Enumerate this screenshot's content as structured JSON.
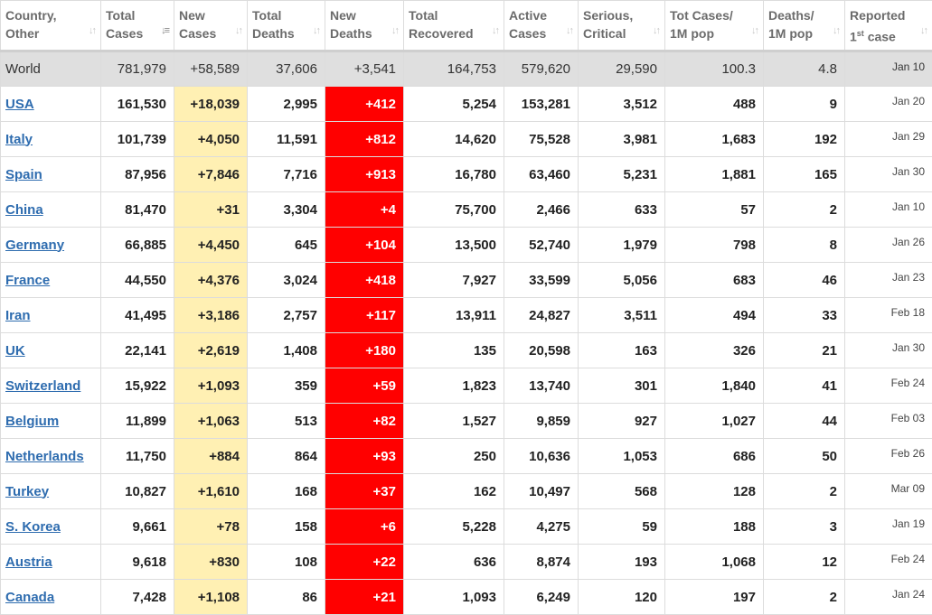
{
  "table": {
    "headers": {
      "country": {
        "line1": "Country,",
        "line2": "Other"
      },
      "total_cases": {
        "line1": "Total",
        "line2": "Cases"
      },
      "new_cases": {
        "line1": "New",
        "line2": "Cases"
      },
      "total_deaths": {
        "line1": "Total",
        "line2": "Deaths"
      },
      "new_deaths": {
        "line1": "New",
        "line2": "Deaths"
      },
      "total_recovered": {
        "line1": "Total",
        "line2": "Recovered"
      },
      "active_cases": {
        "line1": "Active",
        "line2": "Cases"
      },
      "serious_critical": {
        "line1": "Serious,",
        "line2": "Critical"
      },
      "tot_cases_per_1m": {
        "line1": "Tot Cases/",
        "line2": "1M pop"
      },
      "deaths_per_1m": {
        "line1": "Deaths/",
        "line2": "1M pop"
      },
      "reported_first": {
        "line1": "Reported",
        "line2_pre": "1",
        "line2_sup": "st",
        "line2_post": " case"
      }
    },
    "sort_column": "total_cases",
    "world": {
      "country": "World",
      "total_cases": "781,979",
      "new_cases": "+58,589",
      "total_deaths": "37,606",
      "new_deaths": "+3,541",
      "total_recovered": "164,753",
      "active_cases": "579,620",
      "serious_critical": "29,590",
      "tot_cases_per_1m": "100.3",
      "deaths_per_1m": "4.8",
      "reported_first": "Jan 10"
    },
    "rows": [
      {
        "country": "USA",
        "total_cases": "161,530",
        "new_cases": "+18,039",
        "total_deaths": "2,995",
        "new_deaths": "+412",
        "total_recovered": "5,254",
        "active_cases": "153,281",
        "serious_critical": "3,512",
        "tot_cases_per_1m": "488",
        "deaths_per_1m": "9",
        "reported_first": "Jan 20"
      },
      {
        "country": "Italy",
        "total_cases": "101,739",
        "new_cases": "+4,050",
        "total_deaths": "11,591",
        "new_deaths": "+812",
        "total_recovered": "14,620",
        "active_cases": "75,528",
        "serious_critical": "3,981",
        "tot_cases_per_1m": "1,683",
        "deaths_per_1m": "192",
        "reported_first": "Jan 29"
      },
      {
        "country": "Spain",
        "total_cases": "87,956",
        "new_cases": "+7,846",
        "total_deaths": "7,716",
        "new_deaths": "+913",
        "total_recovered": "16,780",
        "active_cases": "63,460",
        "serious_critical": "5,231",
        "tot_cases_per_1m": "1,881",
        "deaths_per_1m": "165",
        "reported_first": "Jan 30"
      },
      {
        "country": "China",
        "total_cases": "81,470",
        "new_cases": "+31",
        "total_deaths": "3,304",
        "new_deaths": "+4",
        "total_recovered": "75,700",
        "active_cases": "2,466",
        "serious_critical": "633",
        "tot_cases_per_1m": "57",
        "deaths_per_1m": "2",
        "reported_first": "Jan 10"
      },
      {
        "country": "Germany",
        "total_cases": "66,885",
        "new_cases": "+4,450",
        "total_deaths": "645",
        "new_deaths": "+104",
        "total_recovered": "13,500",
        "active_cases": "52,740",
        "serious_critical": "1,979",
        "tot_cases_per_1m": "798",
        "deaths_per_1m": "8",
        "reported_first": "Jan 26"
      },
      {
        "country": "France",
        "total_cases": "44,550",
        "new_cases": "+4,376",
        "total_deaths": "3,024",
        "new_deaths": "+418",
        "total_recovered": "7,927",
        "active_cases": "33,599",
        "serious_critical": "5,056",
        "tot_cases_per_1m": "683",
        "deaths_per_1m": "46",
        "reported_first": "Jan 23"
      },
      {
        "country": "Iran",
        "total_cases": "41,495",
        "new_cases": "+3,186",
        "total_deaths": "2,757",
        "new_deaths": "+117",
        "total_recovered": "13,911",
        "active_cases": "24,827",
        "serious_critical": "3,511",
        "tot_cases_per_1m": "494",
        "deaths_per_1m": "33",
        "reported_first": "Feb 18"
      },
      {
        "country": "UK",
        "total_cases": "22,141",
        "new_cases": "+2,619",
        "total_deaths": "1,408",
        "new_deaths": "+180",
        "total_recovered": "135",
        "active_cases": "20,598",
        "serious_critical": "163",
        "tot_cases_per_1m": "326",
        "deaths_per_1m": "21",
        "reported_first": "Jan 30"
      },
      {
        "country": "Switzerland",
        "total_cases": "15,922",
        "new_cases": "+1,093",
        "total_deaths": "359",
        "new_deaths": "+59",
        "total_recovered": "1,823",
        "active_cases": "13,740",
        "serious_critical": "301",
        "tot_cases_per_1m": "1,840",
        "deaths_per_1m": "41",
        "reported_first": "Feb 24"
      },
      {
        "country": "Belgium",
        "total_cases": "11,899",
        "new_cases": "+1,063",
        "total_deaths": "513",
        "new_deaths": "+82",
        "total_recovered": "1,527",
        "active_cases": "9,859",
        "serious_critical": "927",
        "tot_cases_per_1m": "1,027",
        "deaths_per_1m": "44",
        "reported_first": "Feb 03"
      },
      {
        "country": "Netherlands",
        "total_cases": "11,750",
        "new_cases": "+884",
        "total_deaths": "864",
        "new_deaths": "+93",
        "total_recovered": "250",
        "active_cases": "10,636",
        "serious_critical": "1,053",
        "tot_cases_per_1m": "686",
        "deaths_per_1m": "50",
        "reported_first": "Feb 26"
      },
      {
        "country": "Turkey",
        "total_cases": "10,827",
        "new_cases": "+1,610",
        "total_deaths": "168",
        "new_deaths": "+37",
        "total_recovered": "162",
        "active_cases": "10,497",
        "serious_critical": "568",
        "tot_cases_per_1m": "128",
        "deaths_per_1m": "2",
        "reported_first": "Mar 09"
      },
      {
        "country": "S. Korea",
        "total_cases": "9,661",
        "new_cases": "+78",
        "total_deaths": "158",
        "new_deaths": "+6",
        "total_recovered": "5,228",
        "active_cases": "4,275",
        "serious_critical": "59",
        "tot_cases_per_1m": "188",
        "deaths_per_1m": "3",
        "reported_first": "Jan 19"
      },
      {
        "country": "Austria",
        "total_cases": "9,618",
        "new_cases": "+830",
        "total_deaths": "108",
        "new_deaths": "+22",
        "total_recovered": "636",
        "active_cases": "8,874",
        "serious_critical": "193",
        "tot_cases_per_1m": "1,068",
        "deaths_per_1m": "12",
        "reported_first": "Feb 24"
      },
      {
        "country": "Canada",
        "total_cases": "7,428",
        "new_cases": "+1,108",
        "total_deaths": "86",
        "new_deaths": "+21",
        "total_recovered": "1,093",
        "active_cases": "6,249",
        "serious_critical": "120",
        "tot_cases_per_1m": "197",
        "deaths_per_1m": "2",
        "reported_first": "Jan 24"
      }
    ]
  },
  "colors": {
    "new_cases_bg": "#fff0b3",
    "new_deaths_bg": "#ff0000",
    "world_row_bg": "#dfdfdf",
    "link": "#2e6caf",
    "header_text": "#6b6b6b"
  },
  "icons": {
    "sort": "sort-arrows-icon",
    "sort_active": "sort-desc-icon"
  }
}
